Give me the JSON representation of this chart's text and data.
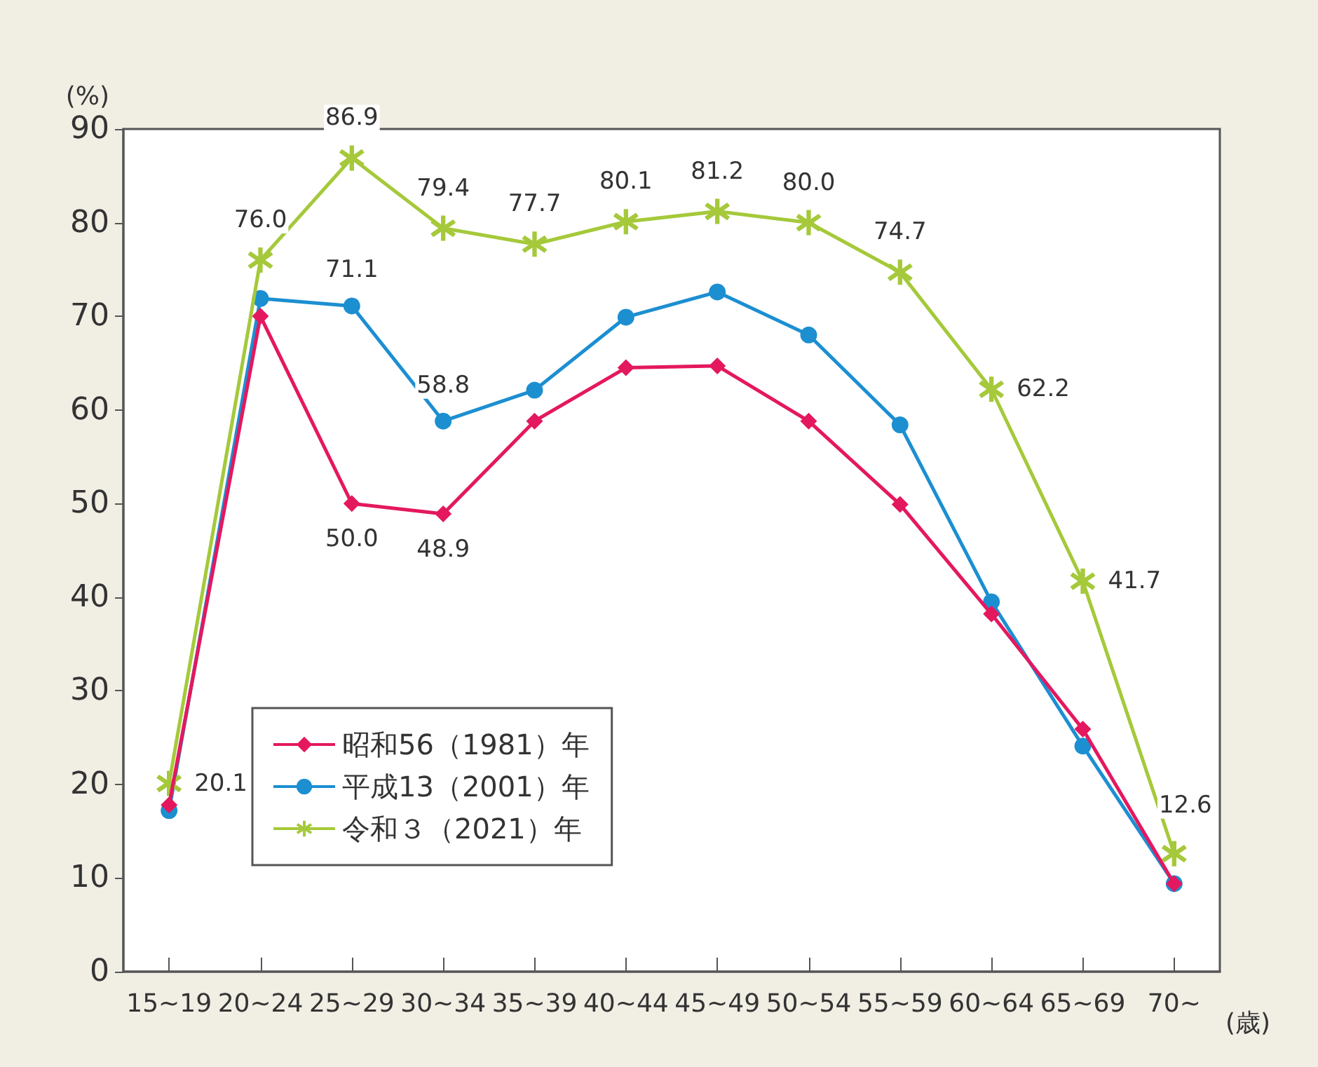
{
  "chart_data": {
    "type": "line",
    "ylabel": "(%)",
    "xlabel": "(歳)",
    "categories": [
      "15~19",
      "20~24",
      "25~29",
      "30~34",
      "35~39",
      "40~44",
      "45~49",
      "50~54",
      "55~59",
      "60~64",
      "65~69",
      "70~"
    ],
    "ylim": [
      0,
      90
    ],
    "yticks": [
      0,
      10,
      20,
      30,
      40,
      50,
      60,
      70,
      80,
      90
    ],
    "grid": false,
    "legend": "bottom left",
    "series": [
      {
        "name": "昭和56（1981）年",
        "color": "#e4185f",
        "marker": "diamond",
        "values": [
          17.8,
          70.0,
          50.0,
          48.9,
          58.8,
          64.5,
          64.7,
          58.8,
          49.9,
          38.2,
          25.9,
          9.4
        ],
        "value_labels": [
          null,
          null,
          "50.0",
          "48.9",
          null,
          null,
          null,
          null,
          null,
          null,
          null,
          null
        ]
      },
      {
        "name": "平成13（2001）年",
        "color": "#1c8fd1",
        "marker": "circle",
        "values": [
          17.2,
          71.9,
          71.1,
          58.8,
          62.1,
          69.9,
          72.6,
          68.0,
          58.4,
          39.5,
          24.1,
          9.4
        ],
        "value_labels": [
          null,
          null,
          "71.1",
          "58.8",
          null,
          null,
          null,
          null,
          null,
          null,
          null,
          null
        ]
      },
      {
        "name": "令和３（2021）年",
        "color": "#a5c93a",
        "marker": "star",
        "values": [
          20.1,
          76.0,
          86.9,
          79.4,
          77.7,
          80.1,
          81.2,
          80.0,
          74.7,
          62.2,
          41.7,
          12.6
        ],
        "value_labels": [
          "20.1",
          "76.0",
          "86.9",
          "79.4",
          "77.7",
          "80.1",
          "81.2",
          "80.0",
          "74.7",
          "62.2",
          "41.7",
          "12.6"
        ]
      }
    ]
  }
}
